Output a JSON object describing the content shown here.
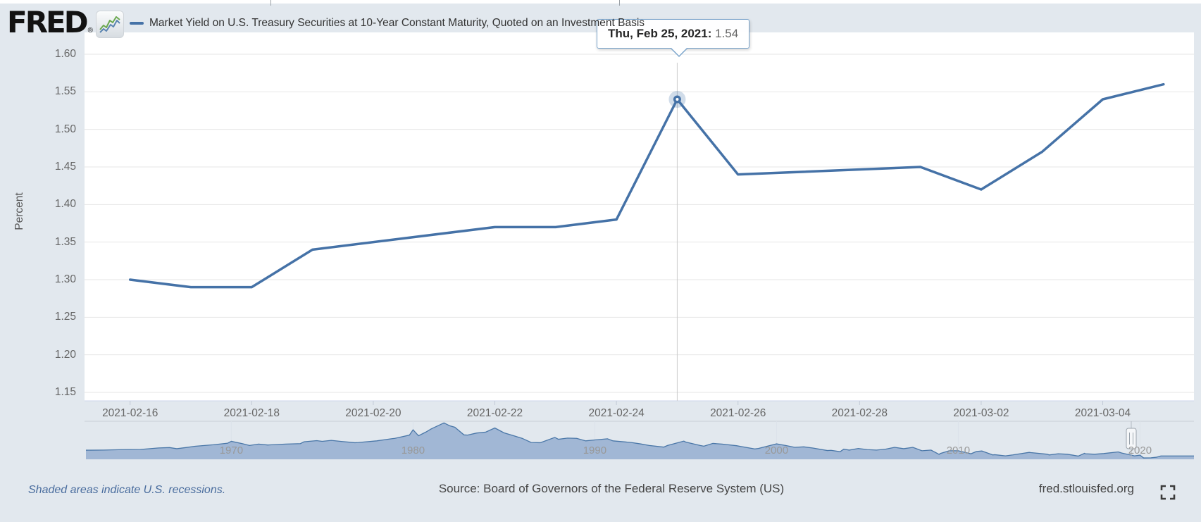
{
  "window": {
    "bg_color": "#e2e8ee",
    "accent_color": "#4572a7"
  },
  "header": {
    "logo": {
      "text": "FRED",
      "registered_mark": "®",
      "icon": "sparkline-chart-icon"
    },
    "legend": {
      "dash_color": "#4572a7",
      "label": "Market Yield on U.S. Treasury Securities at 10-Year Constant Maturity, Quoted on an Investment Basis"
    }
  },
  "tooltip": {
    "date_label": "Thu, Feb 25, 2021:",
    "value": "1.54"
  },
  "y_axis": {
    "title": "Percent"
  },
  "chart_data": [
    {
      "type": "line",
      "name": "Market Yield on U.S. Treasury Securities at 10-Year Constant Maturity",
      "ylabel": "Percent",
      "line_color": "#4572a7",
      "grid": true,
      "x": [
        "2021-02-16",
        "2021-02-17",
        "2021-02-18",
        "2021-02-19",
        "2021-02-22",
        "2021-02-23",
        "2021-02-24",
        "2021-02-25",
        "2021-02-26",
        "2021-03-01",
        "2021-03-02",
        "2021-03-03",
        "2021-03-04",
        "2021-03-05"
      ],
      "values": [
        1.3,
        1.29,
        1.29,
        1.34,
        1.37,
        1.37,
        1.38,
        1.54,
        1.44,
        1.45,
        1.42,
        1.47,
        1.54,
        1.56
      ],
      "y_ticks": [
        1.6,
        1.55,
        1.5,
        1.45,
        1.4,
        1.35,
        1.3,
        1.25,
        1.2,
        1.15
      ],
      "x_ticks": [
        "2021-02-16",
        "2021-02-18",
        "2021-02-20",
        "2021-02-22",
        "2021-02-24",
        "2021-02-26",
        "2021-02-28",
        "2021-03-02",
        "2021-03-04"
      ],
      "ylim": [
        1.14,
        1.63
      ],
      "highlight": {
        "date": "2021-02-25",
        "value": 1.54
      }
    },
    {
      "type": "area",
      "name": "navigator-full-history-10yr-yield",
      "fill_color": "#9ab1d2",
      "line_color": "#4a77a8",
      "ylim": [
        0,
        16.5
      ],
      "x_ticks": [
        1970,
        1980,
        1990,
        2000,
        2010,
        2020
      ],
      "x": [
        1962,
        1963,
        1964,
        1965,
        1966,
        1966.6,
        1967,
        1967.5,
        1968,
        1969,
        1969.8,
        1970,
        1970.6,
        1971,
        1971.5,
        1972,
        1973,
        1973.8,
        1974,
        1974.7,
        1975,
        1975.5,
        1976,
        1976.8,
        1977,
        1978,
        1978.8,
        1979,
        1979.8,
        1980,
        1980.3,
        1980.7,
        1981,
        1981.3,
        1981.7,
        1982,
        1982.3,
        1982.8,
        1983,
        1983.5,
        1984,
        1984.5,
        1985,
        1985.5,
        1986,
        1986.5,
        1987,
        1987.8,
        1988,
        1988.5,
        1989,
        1989.5,
        1990,
        1990.7,
        1991,
        1992,
        1992.5,
        1993,
        1993.8,
        1994,
        1994.9,
        1995,
        1995.8,
        1996,
        1996.5,
        1997,
        1997.8,
        1998,
        1998.8,
        1999,
        1999.8,
        2000,
        2000.5,
        2001,
        2001.5,
        2002,
        2002.8,
        2003,
        2003.5,
        2003.7,
        2004,
        2004.5,
        2005,
        2005.5,
        2006,
        2006.5,
        2007,
        2007.5,
        2008,
        2008.5,
        2008.95,
        2009,
        2009.5,
        2010,
        2010.7,
        2011,
        2011.3,
        2011.9,
        2012,
        2012.6,
        2013,
        2013.9,
        2014,
        2014.9,
        2015,
        2015.5,
        2016,
        2016.6,
        2016.95,
        2017,
        2017.5,
        2018,
        2018.8,
        2019,
        2019.7,
        2020,
        2020.2,
        2020.6,
        2020.9,
        2021,
        2021.15
      ],
      "values": [
        3.95,
        4.0,
        4.19,
        4.28,
        4.93,
        5.1,
        4.6,
        5.1,
        5.65,
        6.3,
        7.0,
        7.8,
        6.8,
        6.0,
        6.6,
        6.2,
        6.6,
        6.8,
        7.6,
        8.1,
        7.8,
        8.2,
        7.8,
        7.2,
        7.3,
        8.0,
        8.9,
        9.1,
        10.5,
        12.8,
        10.2,
        11.8,
        13.2,
        14.3,
        15.8,
        14.6,
        13.9,
        10.6,
        10.5,
        11.4,
        11.8,
        13.6,
        11.5,
        10.3,
        9.1,
        7.3,
        7.2,
        9.5,
        8.7,
        9.2,
        9.1,
        8.0,
        8.4,
        8.9,
        8.0,
        7.3,
        6.7,
        6.0,
        5.3,
        6.0,
        7.9,
        7.5,
        6.0,
        5.7,
        6.9,
        6.6,
        5.9,
        5.6,
        4.5,
        4.7,
        6.3,
        6.7,
        6.0,
        5.2,
        5.4,
        4.9,
        3.8,
        3.9,
        3.3,
        4.4,
        4.0,
        4.7,
        4.2,
        4.0,
        4.4,
        5.2,
        4.6,
        5.2,
        3.7,
        4.0,
        2.1,
        2.5,
        3.7,
        3.7,
        2.4,
        3.4,
        3.6,
        1.9,
        2.0,
        1.5,
        1.9,
        3.0,
        2.9,
        2.2,
        1.9,
        2.4,
        2.2,
        1.4,
        2.6,
        2.4,
        2.2,
        2.5,
        3.2,
        2.7,
        1.5,
        1.8,
        0.6,
        0.65,
        0.9,
        1.1,
        1.45
      ]
    }
  ],
  "footer": {
    "recession_note": "Shaded areas indicate U.S. recessions.",
    "source": "Source: Board of Governors of the Federal Reserve System (US)",
    "site": "fred.stlouisfed.org",
    "fullscreen_icon": "fullscreen-expand-icon"
  }
}
